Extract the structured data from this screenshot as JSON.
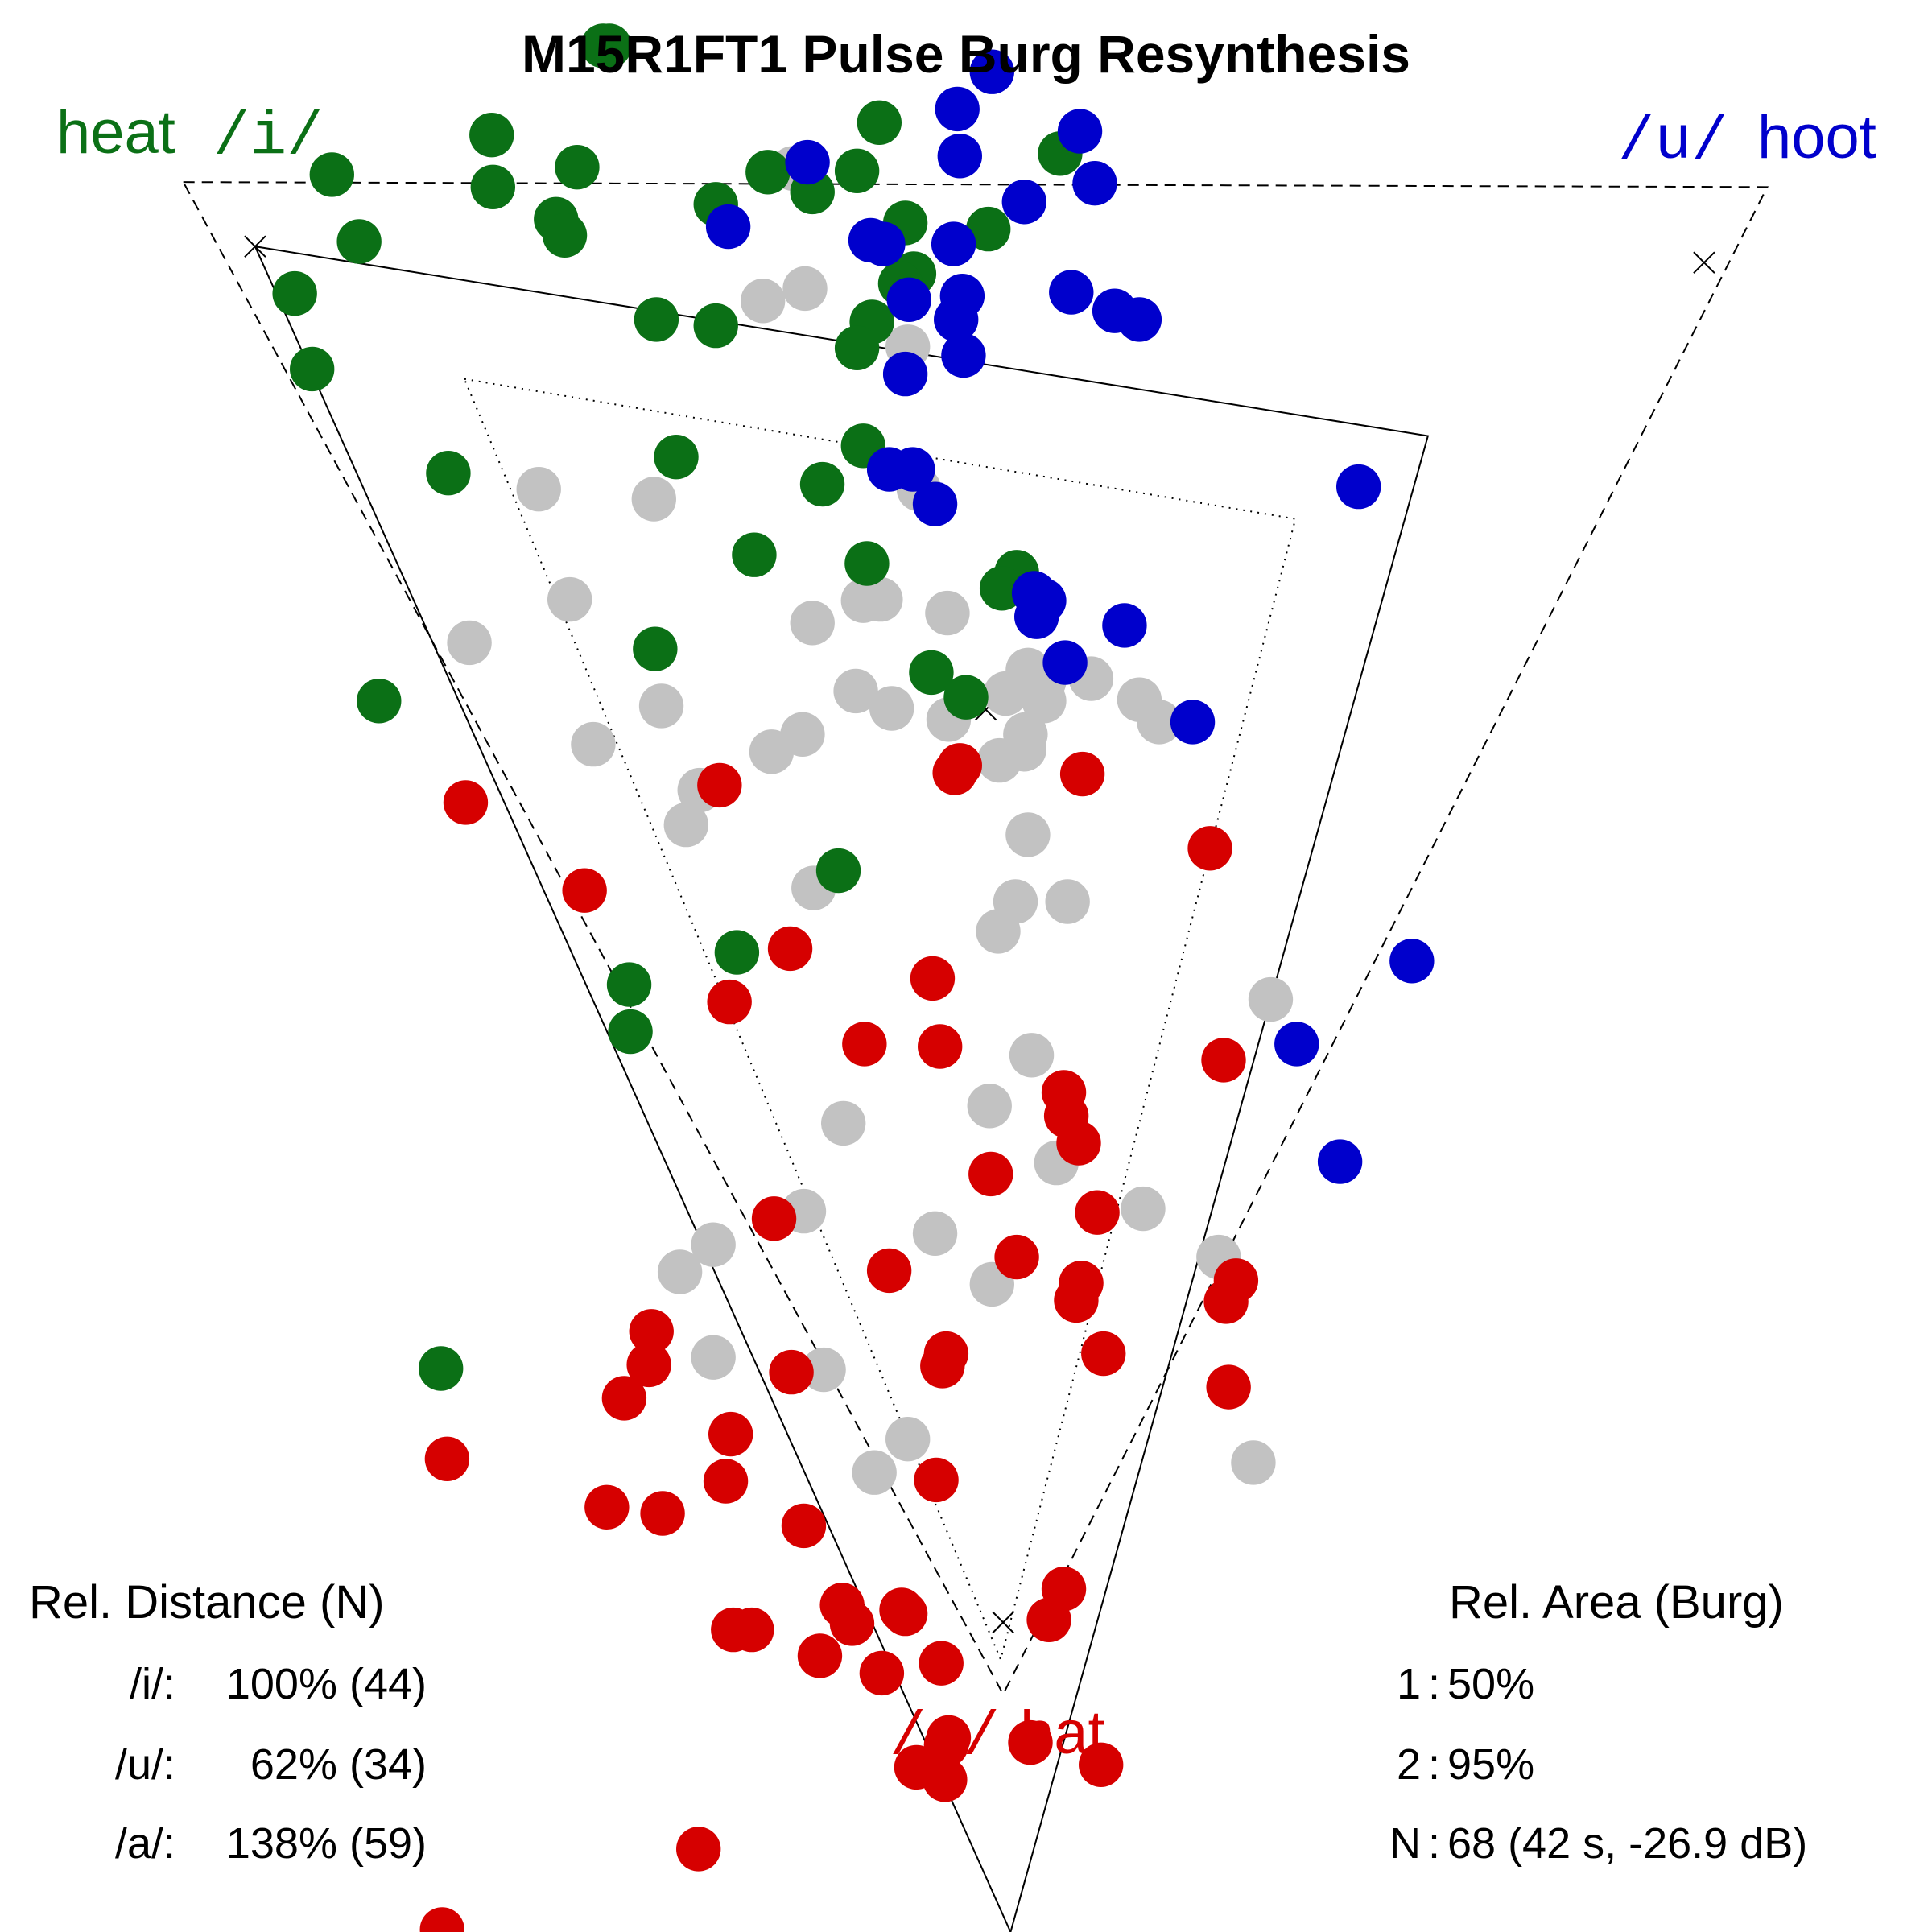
{
  "colors": {
    "i": "#0b7016",
    "u": "#0000cc",
    "a": "#d60000",
    "neutral": "#c2c2c2",
    "outline": "#000000"
  },
  "chart_data": {
    "type": "scatter",
    "title": "M15R1FT1 Pulse Burg Resynthesis",
    "grid": false,
    "xlim": [
      0,
      1560
    ],
    "ylim": [
      1560,
      0
    ],
    "corner_labels": {
      "i_word": "heat",
      "i_symbol": "/i/",
      "u_symbol": "/u/",
      "u_word": "hoot",
      "a_symbol": "/a/",
      "a_word": "hat"
    },
    "triangles": [
      {
        "name": "1",
        "style": "dotted",
        "vertices": [
          [
            375,
            306
          ],
          [
            1046,
            419
          ],
          [
            808,
            1340
          ]
        ]
      },
      {
        "name": "2",
        "style": "dashed",
        "vertices": [
          [
            148,
            147
          ],
          [
            1427,
            151
          ],
          [
            810,
            1368
          ]
        ]
      },
      {
        "name": "N",
        "style": "solid",
        "vertices": [
          [
            206,
            199
          ],
          [
            1153,
            352
          ],
          [
            816,
            1560
          ]
        ]
      }
    ],
    "markers": [
      [
        206,
        199
      ],
      [
        1376,
        212
      ],
      [
        796,
        573
      ],
      [
        810,
        1310
      ]
    ],
    "series": [
      {
        "key": "i",
        "points": [
          [
            492,
            37
          ],
          [
            487,
            37
          ],
          [
            397,
            109
          ],
          [
            710,
            99
          ],
          [
            856,
            124
          ],
          [
            268,
            141
          ],
          [
            466,
            135
          ],
          [
            398,
            151
          ],
          [
            620,
            139
          ],
          [
            692,
            138
          ],
          [
            656,
            155
          ],
          [
            578,
            165
          ],
          [
            449,
            177
          ],
          [
            456,
            190
          ],
          [
            731,
            180
          ],
          [
            290,
            195
          ],
          [
            798,
            185
          ],
          [
            738,
            221
          ],
          [
            727,
            229
          ],
          [
            238,
            237
          ],
          [
            530,
            258
          ],
          [
            578,
            263
          ],
          [
            704,
            260
          ],
          [
            692,
            281
          ],
          [
            252,
            298
          ],
          [
            697,
            360
          ],
          [
            546,
            369
          ],
          [
            362,
            382
          ],
          [
            664,
            391
          ],
          [
            609,
            448
          ],
          [
            700,
            455
          ],
          [
            821,
            462
          ],
          [
            809,
            475
          ],
          [
            529,
            524
          ],
          [
            752,
            543
          ],
          [
            780,
            563
          ],
          [
            306,
            566
          ],
          [
            677,
            703
          ],
          [
            595,
            769
          ],
          [
            508,
            795
          ],
          [
            509,
            833
          ],
          [
            356,
            1105
          ]
        ]
      },
      {
        "key": "u",
        "points": [
          [
            801,
            58
          ],
          [
            773,
            88
          ],
          [
            872,
            106
          ],
          [
            775,
            126
          ],
          [
            652,
            131
          ],
          [
            884,
            148
          ],
          [
            827,
            163
          ],
          [
            588,
            183
          ],
          [
            703,
            194
          ],
          [
            713,
            197
          ],
          [
            770,
            197
          ],
          [
            865,
            236
          ],
          [
            777,
            239
          ],
          [
            734,
            242
          ],
          [
            900,
            251
          ],
          [
            920,
            258
          ],
          [
            772,
            258
          ],
          [
            778,
            287
          ],
          [
            731,
            302
          ],
          [
            1097,
            393
          ],
          [
            718,
            379
          ],
          [
            737,
            379
          ],
          [
            755,
            407
          ],
          [
            835,
            479
          ],
          [
            843,
            485
          ],
          [
            837,
            498
          ],
          [
            908,
            505
          ],
          [
            860,
            535
          ],
          [
            963,
            583
          ],
          [
            1140,
            776
          ],
          [
            1047,
            843
          ],
          [
            1082,
            938
          ]
        ]
      },
      {
        "key": "a",
        "points": [
          [
            775,
            618
          ],
          [
            771,
            624
          ],
          [
            874,
            625
          ],
          [
            581,
            634
          ],
          [
            376,
            648
          ],
          [
            977,
            685
          ],
          [
            472,
            719
          ],
          [
            638,
            766
          ],
          [
            753,
            790
          ],
          [
            589,
            809
          ],
          [
            698,
            843
          ],
          [
            759,
            845
          ],
          [
            988,
            856
          ],
          [
            859,
            882
          ],
          [
            861,
            901
          ],
          [
            871,
            923
          ],
          [
            800,
            948
          ],
          [
            886,
            979
          ],
          [
            625,
            984
          ],
          [
            821,
            1015
          ],
          [
            718,
            1026
          ],
          [
            873,
            1036
          ],
          [
            998,
            1034
          ],
          [
            869,
            1050
          ],
          [
            990,
            1051
          ],
          [
            526,
            1075
          ],
          [
            764,
            1093
          ],
          [
            891,
            1093
          ],
          [
            524,
            1102
          ],
          [
            761,
            1103
          ],
          [
            639,
            1108
          ],
          [
            992,
            1120
          ],
          [
            504,
            1129
          ],
          [
            590,
            1158
          ],
          [
            361,
            1178
          ],
          [
            586,
            1196
          ],
          [
            756,
            1195
          ],
          [
            490,
            1217
          ],
          [
            535,
            1222
          ],
          [
            649,
            1232
          ],
          [
            859,
            1283
          ],
          [
            680,
            1296
          ],
          [
            728,
            1300
          ],
          [
            731,
            1303
          ],
          [
            688,
            1311
          ],
          [
            847,
            1308
          ],
          [
            592,
            1316
          ],
          [
            607,
            1316
          ],
          [
            662,
            1337
          ],
          [
            760,
            1343
          ],
          [
            712,
            1351
          ],
          [
            766,
            1403
          ],
          [
            832,
            1407
          ],
          [
            764,
            1409
          ],
          [
            889,
            1425
          ],
          [
            740,
            1427
          ],
          [
            763,
            1437
          ],
          [
            564,
            1493
          ],
          [
            357,
            1558
          ]
        ]
      },
      {
        "key": "neutral",
        "points": [
          [
            640,
            136
          ],
          [
            650,
            233
          ],
          [
            616,
            243
          ],
          [
            733,
            280
          ],
          [
            435,
            395
          ],
          [
            528,
            403
          ],
          [
            742,
            395
          ],
          [
            460,
            484
          ],
          [
            697,
            485
          ],
          [
            711,
            484
          ],
          [
            765,
            495
          ],
          [
            656,
            503
          ],
          [
            379,
            519
          ],
          [
            830,
            541
          ],
          [
            843,
            550
          ],
          [
            881,
            548
          ],
          [
            691,
            558
          ],
          [
            812,
            560
          ],
          [
            534,
            570
          ],
          [
            720,
            572
          ],
          [
            920,
            565
          ],
          [
            766,
            581
          ],
          [
            843,
            566
          ],
          [
            936,
            583
          ],
          [
            648,
            593
          ],
          [
            828,
            593
          ],
          [
            479,
            601
          ],
          [
            623,
            607
          ],
          [
            827,
            605
          ],
          [
            807,
            614
          ],
          [
            565,
            638
          ],
          [
            554,
            666
          ],
          [
            830,
            674
          ],
          [
            657,
            717
          ],
          [
            820,
            728
          ],
          [
            862,
            728
          ],
          [
            806,
            752
          ],
          [
            1026,
            807
          ],
          [
            833,
            852
          ],
          [
            681,
            907
          ],
          [
            799,
            893
          ],
          [
            853,
            939
          ],
          [
            923,
            976
          ],
          [
            649,
            978
          ],
          [
            576,
            1005
          ],
          [
            755,
            996
          ],
          [
            549,
            1027
          ],
          [
            984,
            1015
          ],
          [
            801,
            1037
          ],
          [
            576,
            1096
          ],
          [
            665,
            1106
          ],
          [
            733,
            1162
          ],
          [
            706,
            1189
          ],
          [
            1012,
            1181
          ]
        ]
      }
    ]
  },
  "stats": {
    "distance": {
      "heading": "Rel. Distance (N)",
      "rows": [
        {
          "label": "/i/:",
          "value": "100% (44)"
        },
        {
          "label": "/u/:",
          "value": "62% (34)"
        },
        {
          "label": "/a/:",
          "value": "138% (59)"
        }
      ]
    },
    "area": {
      "heading": "Rel. Area (Burg)",
      "rows": [
        {
          "label": "1",
          "value": "50%"
        },
        {
          "label": "2",
          "value": "95%"
        },
        {
          "label": "N",
          "value": "68 (42 s, -26.9 dB)"
        }
      ]
    }
  }
}
